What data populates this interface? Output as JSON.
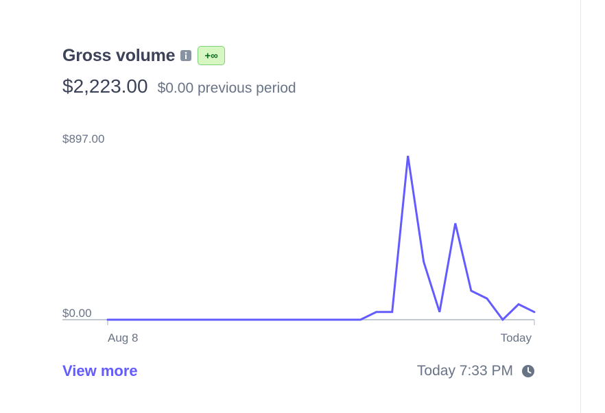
{
  "widget": {
    "title": "Gross volume",
    "badge": "+∞",
    "value": "$2,223.00",
    "previous": "$0.00 previous period",
    "view_more": "View more",
    "updated": "Today 7:33 PM",
    "icons": {
      "info": "info-icon",
      "clock": "clock-icon"
    },
    "colors": {
      "line": "#635bff",
      "badge_bg": "#d7f7c2",
      "badge_text": "#0a6b1f",
      "link": "#635bff"
    }
  },
  "chart_data": {
    "type": "line",
    "title": "",
    "xlabel": "",
    "ylabel": "",
    "y_tick_labels": [
      "$897.00",
      "$0.00"
    ],
    "x_tick_labels": [
      "Aug 8",
      "Today"
    ],
    "ylim": [
      0,
      897
    ],
    "grid": false,
    "series": [
      {
        "values": [
          0,
          0,
          0,
          0,
          0,
          0,
          0,
          0,
          0,
          0,
          0,
          0,
          0,
          0,
          0,
          0,
          0,
          40,
          40,
          850,
          300,
          40,
          500,
          150,
          110,
          0,
          80,
          40
        ]
      }
    ]
  }
}
